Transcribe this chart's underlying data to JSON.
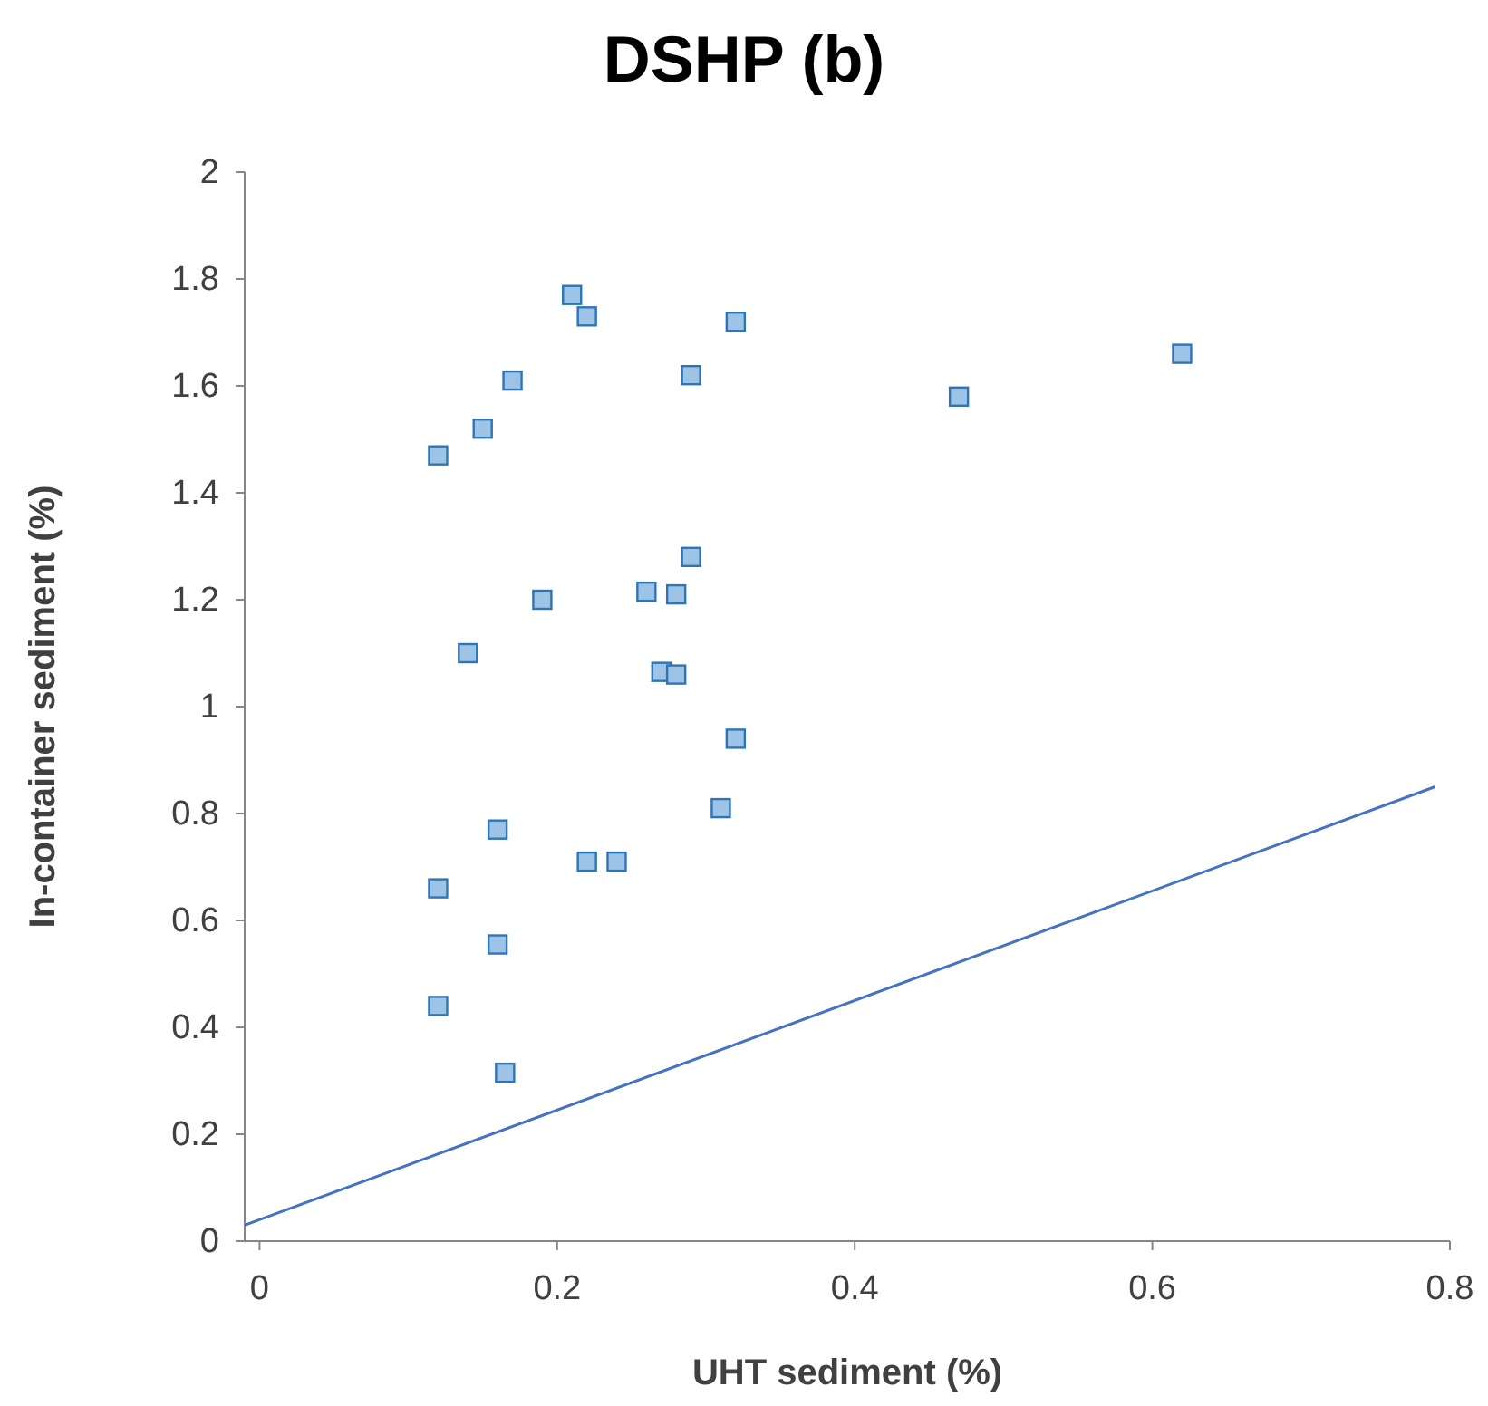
{
  "chart_data": {
    "type": "scatter",
    "title": "DSHP (b)",
    "xlabel": "UHT sediment (%)",
    "ylabel": "In-container sediment (%)",
    "xlim": [
      -0.01,
      0.8
    ],
    "ylim": [
      0,
      2
    ],
    "xticks": [
      0,
      0.2,
      0.4,
      0.6,
      0.8
    ],
    "yticks": [
      0,
      0.2,
      0.4,
      0.6,
      0.8,
      1,
      1.2,
      1.4,
      1.6,
      1.8,
      2
    ],
    "grid": false,
    "series": [
      {
        "color": "#9dc3e6",
        "marker": "square",
        "x": [
          0.12,
          0.15,
          0.17,
          0.21,
          0.22,
          0.32,
          0.29,
          0.47,
          0.62,
          0.29,
          0.19,
          0.26,
          0.28,
          0.14,
          0.27,
          0.28,
          0.32,
          0.31,
          0.16,
          0.22,
          0.24,
          0.12,
          0.16,
          0.12,
          0.165
        ],
        "values": [
          1.47,
          1.52,
          1.61,
          1.77,
          1.73,
          1.72,
          1.62,
          1.58,
          1.66,
          1.28,
          1.2,
          1.215,
          1.21,
          1.1,
          1.065,
          1.06,
          0.94,
          0.81,
          0.77,
          0.71,
          0.71,
          0.66,
          0.555,
          0.44,
          0.315
        ]
      },
      {
        "type": "line",
        "color": "#4472c4",
        "marker": "none",
        "line_style": "solid",
        "x": [
          -0.01,
          0.79
        ],
        "values": [
          0.03,
          0.85
        ]
      }
    ]
  }
}
